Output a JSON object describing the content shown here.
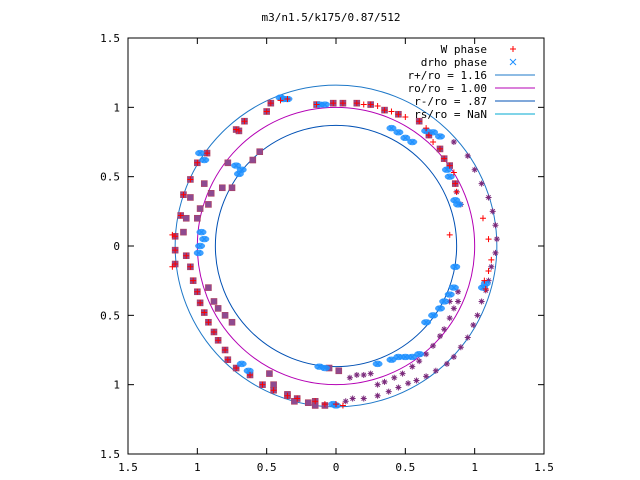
{
  "chart_data": {
    "type": "scatter",
    "title": "m3/n1.5/k175/0.87/512",
    "xlabel": "",
    "ylabel": "",
    "xlim": [
      -1.5,
      1.5
    ],
    "ylim": [
      -1.5,
      1.5
    ],
    "x_ticks": [
      -1.5,
      -1,
      -0.5,
      0,
      0.5,
      1,
      1.5
    ],
    "y_ticks": [
      -1.5,
      -1,
      -0.5,
      0,
      0.5,
      1,
      1.5
    ],
    "x_tick_labels": [
      "1.5",
      "1",
      "0.5",
      "0",
      "0.5",
      "1",
      "1.5"
    ],
    "y_tick_labels": [
      "1.5",
      "1",
      "0.5",
      "0",
      "0.5",
      "1",
      "1.5"
    ],
    "grid": false,
    "legend_position": "top-right",
    "colors": {
      "w_phase": "#ff0000",
      "drho_phase": "#1e90ff",
      "circle_rplus": "#1e78c8",
      "circle_ro": "#b400b4",
      "circle_rminus": "#0050b4",
      "circle_rs": "#00aad2",
      "square_marker": "#8e4a90",
      "star_marker": "#7b2a7b"
    },
    "circles": [
      {
        "name": "r+/ro = 1.16",
        "r": 1.16
      },
      {
        "name": "ro/ro = 1.00",
        "r": 1.0
      },
      {
        "name": "r-/ro = .87",
        "r": 0.87
      },
      {
        "name": "rs/ro = NaN",
        "r": null
      }
    ],
    "series": [
      {
        "name": "W phase",
        "marker": "plus",
        "points": [
          [
            -1.16,
            0.07
          ],
          [
            -1.16,
            -0.03
          ],
          [
            -1.16,
            -0.13
          ],
          [
            -1.12,
            0.22
          ],
          [
            -1.1,
            0.37
          ],
          [
            -1.05,
            0.48
          ],
          [
            -1.0,
            0.6
          ],
          [
            -0.93,
            0.67
          ],
          [
            -0.72,
            0.84
          ],
          [
            -0.7,
            0.83
          ],
          [
            -0.66,
            0.9
          ],
          [
            -0.5,
            0.97
          ],
          [
            -0.47,
            1.03
          ],
          [
            -0.4,
            1.05
          ],
          [
            -0.35,
            1.06
          ],
          [
            -0.14,
            1.02
          ],
          [
            -0.02,
            1.03
          ],
          [
            0.05,
            1.03
          ],
          [
            0.15,
            1.03
          ],
          [
            0.2,
            1.02
          ],
          [
            0.25,
            1.02
          ],
          [
            0.3,
            1.01
          ],
          [
            0.35,
            0.98
          ],
          [
            0.4,
            0.97
          ],
          [
            0.45,
            0.95
          ],
          [
            0.5,
            0.93
          ],
          [
            0.6,
            0.9
          ],
          [
            0.65,
            0.85
          ],
          [
            0.67,
            0.8
          ],
          [
            0.7,
            0.75
          ],
          [
            0.75,
            0.7
          ],
          [
            0.78,
            0.63
          ],
          [
            0.82,
            0.58
          ],
          [
            0.85,
            0.53
          ],
          [
            0.86,
            0.45
          ],
          [
            0.87,
            0.39
          ],
          [
            0.82,
            0.08
          ],
          [
            1.06,
            0.2
          ],
          [
            1.1,
            0.05
          ],
          [
            1.12,
            -0.1
          ],
          [
            1.1,
            -0.18
          ],
          [
            1.07,
            -0.25
          ],
          [
            1.08,
            -0.31
          ],
          [
            -1.08,
            -0.07
          ],
          [
            -1.05,
            -0.15
          ],
          [
            -1.03,
            -0.25
          ],
          [
            -1.0,
            -0.33
          ],
          [
            -0.98,
            -0.41
          ],
          [
            -0.95,
            -0.48
          ],
          [
            -0.92,
            -0.55
          ],
          [
            -0.88,
            -0.62
          ],
          [
            -0.85,
            -0.68
          ],
          [
            -0.8,
            -0.75
          ],
          [
            -0.78,
            -0.82
          ],
          [
            -0.72,
            -0.88
          ],
          [
            -0.62,
            -0.93
          ],
          [
            -0.53,
            -1.0
          ],
          [
            -0.45,
            -1.04
          ],
          [
            -0.35,
            -1.08
          ],
          [
            -0.28,
            -1.1
          ],
          [
            -0.15,
            -1.12
          ],
          [
            -0.08,
            -1.14
          ],
          [
            0.0,
            -1.14
          ],
          [
            0.05,
            -1.15
          ],
          [
            -1.18,
            0.08
          ],
          [
            -1.18,
            -0.15
          ]
        ]
      },
      {
        "name": "drho phase",
        "marker": "cross",
        "points": [
          [
            -0.98,
            0.67
          ],
          [
            -0.95,
            0.62
          ],
          [
            -0.72,
            0.58
          ],
          [
            -0.68,
            0.55
          ],
          [
            -0.7,
            0.52
          ],
          [
            -0.97,
            0.1
          ],
          [
            -0.95,
            0.05
          ],
          [
            -0.98,
            0.0
          ],
          [
            -0.99,
            -0.05
          ],
          [
            -0.68,
            -0.85
          ],
          [
            -0.63,
            -0.9
          ],
          [
            -0.4,
            1.07
          ],
          [
            -0.38,
            1.06
          ],
          [
            -0.35,
            1.06
          ],
          [
            -0.12,
            1.02
          ],
          [
            -0.08,
            1.02
          ],
          [
            0.4,
            0.85
          ],
          [
            0.45,
            0.82
          ],
          [
            0.5,
            0.78
          ],
          [
            0.55,
            0.75
          ],
          [
            0.65,
            0.83
          ],
          [
            0.7,
            0.82
          ],
          [
            0.75,
            0.79
          ],
          [
            0.8,
            0.55
          ],
          [
            0.82,
            0.5
          ],
          [
            0.86,
            0.33
          ],
          [
            0.88,
            0.3
          ],
          [
            0.86,
            -0.15
          ],
          [
            0.85,
            -0.3
          ],
          [
            0.82,
            -0.35
          ],
          [
            0.78,
            -0.4
          ],
          [
            0.75,
            -0.45
          ],
          [
            0.7,
            -0.5
          ],
          [
            0.65,
            -0.55
          ],
          [
            -0.12,
            -0.87
          ],
          [
            -0.08,
            -0.88
          ],
          [
            0.3,
            -0.85
          ],
          [
            0.4,
            -0.82
          ],
          [
            0.45,
            -0.8
          ],
          [
            0.5,
            -0.8
          ],
          [
            0.55,
            -0.8
          ],
          [
            0.6,
            -0.78
          ],
          [
            1.06,
            -0.3
          ],
          [
            1.08,
            -0.27
          ],
          [
            -0.02,
            -1.14
          ],
          [
            0.0,
            -1.15
          ]
        ]
      },
      {
        "name": "",
        "marker": "square",
        "points": [
          [
            -1.16,
            0.07
          ],
          [
            -1.16,
            -0.03
          ],
          [
            -1.16,
            -0.13
          ],
          [
            -1.12,
            0.22
          ],
          [
            -1.1,
            0.37
          ],
          [
            -1.05,
            0.48
          ],
          [
            -1.0,
            0.6
          ],
          [
            -0.93,
            0.67
          ],
          [
            -0.72,
            0.84
          ],
          [
            -0.7,
            0.83
          ],
          [
            -0.66,
            0.9
          ],
          [
            -0.5,
            0.97
          ],
          [
            -0.47,
            1.03
          ],
          [
            -0.14,
            1.02
          ],
          [
            -0.02,
            1.03
          ],
          [
            0.05,
            1.03
          ],
          [
            0.15,
            1.03
          ],
          [
            0.25,
            1.02
          ],
          [
            0.35,
            0.98
          ],
          [
            0.45,
            0.95
          ],
          [
            0.6,
            0.9
          ],
          [
            0.67,
            0.8
          ],
          [
            0.75,
            0.7
          ],
          [
            0.78,
            0.63
          ],
          [
            0.82,
            0.58
          ],
          [
            0.86,
            0.45
          ],
          [
            -1.08,
            -0.07
          ],
          [
            -1.05,
            -0.15
          ],
          [
            -1.03,
            -0.25
          ],
          [
            -1.0,
            -0.33
          ],
          [
            -0.98,
            -0.41
          ],
          [
            -0.95,
            -0.48
          ],
          [
            -0.92,
            -0.55
          ],
          [
            -0.88,
            -0.62
          ],
          [
            -0.85,
            -0.68
          ],
          [
            -0.8,
            -0.75
          ],
          [
            -0.78,
            -0.82
          ],
          [
            -0.72,
            -0.88
          ],
          [
            -0.62,
            -0.93
          ],
          [
            -0.53,
            -1.0
          ],
          [
            -0.45,
            -1.04
          ],
          [
            -0.35,
            -1.08
          ],
          [
            -0.28,
            -1.1
          ],
          [
            -0.15,
            -1.12
          ],
          [
            -1.05,
            0.35
          ],
          [
            -1.08,
            0.2
          ],
          [
            -1.1,
            0.1
          ],
          [
            -0.98,
            0.27
          ],
          [
            -0.92,
            0.3
          ],
          [
            -0.95,
            0.45
          ],
          [
            -0.55,
            0.68
          ],
          [
            -0.6,
            0.62
          ],
          [
            -0.78,
            0.6
          ],
          [
            -0.75,
            0.42
          ],
          [
            -0.82,
            0.42
          ],
          [
            -0.9,
            0.38
          ],
          [
            -1.0,
            0.2
          ],
          [
            -0.92,
            -0.3
          ],
          [
            -0.88,
            -0.4
          ],
          [
            -0.85,
            -0.45
          ],
          [
            -0.8,
            -0.5
          ],
          [
            -0.75,
            -0.55
          ],
          [
            -0.48,
            -0.92
          ],
          [
            -0.45,
            -1.0
          ],
          [
            -0.35,
            -1.07
          ],
          [
            -0.05,
            -0.88
          ],
          [
            0.02,
            -0.9
          ],
          [
            -0.3,
            -1.12
          ],
          [
            -0.2,
            -1.13
          ],
          [
            -0.15,
            -1.15
          ],
          [
            -0.08,
            -1.15
          ]
        ]
      },
      {
        "name": "",
        "marker": "star",
        "points": [
          [
            0.07,
            -1.12
          ],
          [
            0.12,
            -1.1
          ],
          [
            0.2,
            -1.1
          ],
          [
            0.3,
            -1.08
          ],
          [
            0.38,
            -1.05
          ],
          [
            0.45,
            -1.02
          ],
          [
            0.52,
            -0.99
          ],
          [
            0.58,
            -0.97
          ],
          [
            0.65,
            -0.94
          ],
          [
            0.72,
            -0.9
          ],
          [
            0.8,
            -0.85
          ],
          [
            0.85,
            -0.8
          ],
          [
            0.9,
            -0.73
          ],
          [
            0.95,
            -0.66
          ],
          [
            0.99,
            -0.57
          ],
          [
            1.02,
            -0.5
          ],
          [
            1.05,
            -0.4
          ],
          [
            1.08,
            -0.32
          ],
          [
            1.1,
            -0.25
          ],
          [
            1.12,
            -0.15
          ],
          [
            1.15,
            -0.05
          ],
          [
            1.16,
            0.05
          ],
          [
            1.15,
            0.15
          ],
          [
            1.13,
            0.25
          ],
          [
            1.1,
            0.35
          ],
          [
            1.05,
            0.45
          ],
          [
            1.0,
            0.55
          ],
          [
            0.95,
            0.65
          ],
          [
            0.85,
            0.75
          ],
          [
            0.3,
            -1.0
          ],
          [
            0.35,
            -0.98
          ],
          [
            0.42,
            -0.95
          ],
          [
            0.48,
            -0.92
          ],
          [
            0.55,
            -0.87
          ],
          [
            0.6,
            -0.83
          ],
          [
            0.65,
            -0.78
          ],
          [
            0.7,
            -0.72
          ],
          [
            0.75,
            -0.65
          ],
          [
            0.78,
            -0.6
          ],
          [
            0.82,
            -0.52
          ],
          [
            0.85,
            -0.45
          ],
          [
            0.88,
            -0.4
          ],
          [
            0.1,
            -0.95
          ],
          [
            0.15,
            -0.93
          ],
          [
            0.2,
            -0.93
          ],
          [
            0.25,
            -0.92
          ],
          [
            0.87,
            0.39
          ],
          [
            0.9,
            0.3
          ],
          [
            0.88,
            -0.33
          ],
          [
            0.82,
            -0.4
          ]
        ]
      }
    ]
  }
}
